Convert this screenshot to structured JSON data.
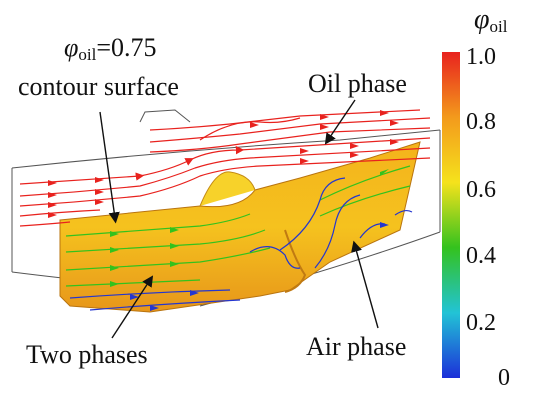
{
  "annotations": {
    "contour_symbol": "φ",
    "contour_subscript": "oil",
    "contour_value": "=0.75",
    "contour_text": "contour surface",
    "oil_phase": "Oil phase",
    "two_phases": "Two phases",
    "air_phase": "Air phase"
  },
  "colorbar": {
    "symbol": "φ",
    "subscript": "oil",
    "ticks": [
      "1.0",
      "0.8",
      "0.6",
      "0.4",
      "0.2",
      "0"
    ],
    "colors": [
      "#e8221e",
      "#f39a1c",
      "#f5e21c",
      "#34c21e",
      "#22c3d6",
      "#1c2fd8"
    ]
  },
  "palette": {
    "oil_streamline": "#e8221e",
    "mixed_streamline": "#33c21d",
    "air_streamline": "#2436cf",
    "surface": "#f2a81c"
  }
}
